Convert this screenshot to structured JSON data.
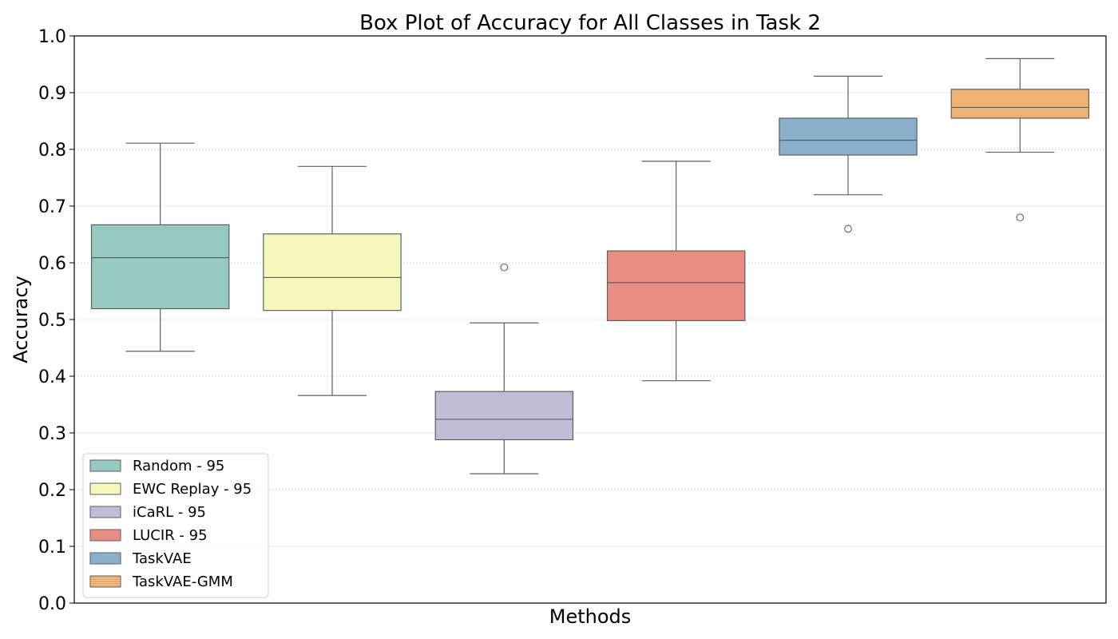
{
  "chart_data": {
    "type": "box",
    "title": "Box Plot of Accuracy for All Classes in Task 2",
    "xlabel": "Methods",
    "ylabel": "Accuracy",
    "ylim": [
      0.0,
      1.0
    ],
    "yticks": [
      "0.0",
      "0.1",
      "0.2",
      "0.3",
      "0.4",
      "0.5",
      "0.6",
      "0.7",
      "0.8",
      "0.9",
      "1.0"
    ],
    "grid": "horizontal dotted",
    "legend_position": "lower-left",
    "series": [
      {
        "name": "Random - 95",
        "color": "#96c9c1",
        "whisker_low": 0.444,
        "q1": 0.519,
        "median": 0.609,
        "q3": 0.667,
        "whisker_high": 0.811,
        "outliers": []
      },
      {
        "name": "EWC Replay - 95",
        "color": "#f7f6bb",
        "whisker_low": 0.366,
        "q1": 0.516,
        "median": 0.574,
        "q3": 0.651,
        "whisker_high": 0.77,
        "outliers": []
      },
      {
        "name": "iCaRL - 95",
        "color": "#c0bdd7",
        "whisker_low": 0.228,
        "q1": 0.288,
        "median": 0.324,
        "q3": 0.373,
        "whisker_high": 0.494,
        "outliers": [
          0.592
        ]
      },
      {
        "name": "LUCIR - 95",
        "color": "#e98c82",
        "whisker_low": 0.392,
        "q1": 0.498,
        "median": 0.565,
        "q3": 0.621,
        "whisker_high": 0.779,
        "outliers": []
      },
      {
        "name": "TaskVAE",
        "color": "#89afca",
        "whisker_low": 0.72,
        "q1": 0.79,
        "median": 0.816,
        "q3": 0.855,
        "whisker_high": 0.929,
        "outliers": [
          0.66
        ]
      },
      {
        "name": "TaskVAE-GMM",
        "color": "#edb374",
        "whisker_low": 0.795,
        "q1": 0.855,
        "median": 0.874,
        "q3": 0.906,
        "whisker_high": 0.96,
        "outliers": [
          0.68
        ]
      }
    ]
  }
}
